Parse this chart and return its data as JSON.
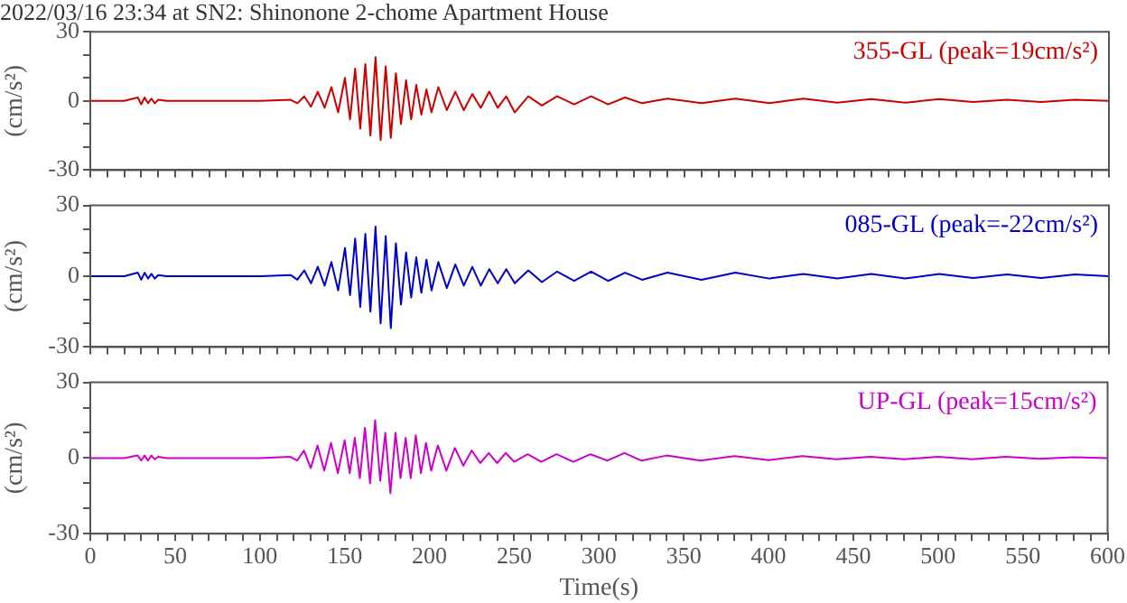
{
  "chart_data": [
    {
      "type": "line",
      "title": "2022/03/16 23:34 at SN2: Shinonone 2-chome Apartment House",
      "ylabel": "(cm/s²)",
      "tick_labels": "y",
      "grid": false,
      "legend": false,
      "marker": "none",
      "xlim": [
        0,
        600
      ],
      "ylim": [
        -30,
        30
      ],
      "xticks": [
        0,
        {
          "value": 10,
          "label": null
        },
        {
          "value": 20,
          "label": null
        },
        {
          "value": 30,
          "label": null
        },
        {
          "value": 40,
          "label": null
        },
        50,
        {
          "value": 60,
          "label": null
        },
        {
          "value": 70,
          "label": null
        },
        {
          "value": 80,
          "label": null
        },
        {
          "value": 90,
          "label": null
        },
        100,
        {
          "value": 110,
          "label": null
        },
        {
          "value": 120,
          "label": null
        },
        {
          "value": 130,
          "label": null
        },
        {
          "value": 140,
          "label": null
        },
        150,
        {
          "value": 160,
          "label": null
        },
        {
          "value": 170,
          "label": null
        },
        {
          "value": 180,
          "label": null
        },
        {
          "value": 190,
          "label": null
        },
        200,
        {
          "value": 210,
          "label": null
        },
        {
          "value": 220,
          "label": null
        },
        {
          "value": 230,
          "label": null
        },
        {
          "value": 240,
          "label": null
        },
        250,
        {
          "value": 260,
          "label": null
        },
        {
          "value": 270,
          "label": null
        },
        {
          "value": 280,
          "label": null
        },
        {
          "value": 290,
          "label": null
        },
        300,
        {
          "value": 310,
          "label": null
        },
        {
          "value": 320,
          "label": null
        },
        {
          "value": 330,
          "label": null
        },
        {
          "value": 340,
          "label": null
        },
        350,
        {
          "value": 360,
          "label": null
        },
        {
          "value": 370,
          "label": null
        },
        {
          "value": 380,
          "label": null
        },
        {
          "value": 390,
          "label": null
        },
        400,
        {
          "value": 410,
          "label": null
        },
        {
          "value": 420,
          "label": null
        },
        {
          "value": 430,
          "label": null
        },
        {
          "value": 440,
          "label": null
        },
        450,
        {
          "value": 460,
          "label": null
        },
        {
          "value": 470,
          "label": null
        },
        {
          "value": 480,
          "label": null
        },
        {
          "value": 490,
          "label": null
        },
        500,
        {
          "value": 510,
          "label": null
        },
        {
          "value": 520,
          "label": null
        },
        {
          "value": 530,
          "label": null
        },
        {
          "value": 540,
          "label": null
        },
        550,
        {
          "value": 560,
          "label": null
        },
        {
          "value": 570,
          "label": null
        },
        {
          "value": 580,
          "label": null
        },
        {
          "value": 590,
          "label": null
        },
        600
      ],
      "yticks": [
        -30,
        {
          "value": -20,
          "label": null
        },
        {
          "value": -10,
          "label": null
        },
        0,
        {
          "value": 10,
          "label": null
        },
        {
          "value": 20,
          "label": null
        },
        30
      ],
      "x": [
        0,
        20,
        28,
        30,
        32,
        34,
        36,
        38,
        40,
        45,
        60,
        100,
        118,
        122,
        126,
        130,
        134,
        138,
        142,
        146,
        150,
        153,
        156,
        159,
        162,
        165,
        168,
        171,
        174,
        177,
        180,
        183,
        186,
        189,
        192,
        195,
        198,
        201,
        205,
        210,
        215,
        220,
        225,
        230,
        235,
        240,
        245,
        250,
        258,
        266,
        275,
        285,
        295,
        305,
        315,
        325,
        340,
        360,
        380,
        400,
        420,
        440,
        460,
        480,
        500,
        520,
        540,
        560,
        580,
        600
      ],
      "series": [
        {
          "name": "355-GL (peak=19cm/s²)",
          "color": "#cc0000",
          "values": [
            0,
            0,
            1.5,
            -1.5,
            1.5,
            -1,
            1,
            -1,
            0.5,
            0,
            0,
            0,
            0.5,
            -1,
            2,
            -2.5,
            4,
            -3,
            6,
            -5,
            10,
            -8,
            14,
            -12,
            16,
            -15,
            19,
            -17,
            15,
            -16,
            12,
            -10,
            9,
            -8,
            7,
            -6,
            5,
            -5,
            6,
            -4,
            4,
            -4,
            3,
            -3,
            4,
            -3,
            2,
            -5,
            2,
            -2,
            2,
            -1.5,
            2,
            -1.5,
            1.5,
            -1,
            1,
            -1,
            1,
            -1,
            1,
            -0.8,
            0.8,
            -0.8,
            0.8,
            -0.5,
            0.5,
            -0.5,
            0.5,
            0
          ]
        }
      ]
    },
    {
      "type": "line",
      "ylabel": "(cm/s²)",
      "tick_labels": "y",
      "grid": false,
      "legend": false,
      "marker": "none",
      "xlim": [
        0,
        600
      ],
      "ylim": [
        -30,
        30
      ],
      "xticks": [
        0,
        {
          "value": 10,
          "label": null
        },
        {
          "value": 20,
          "label": null
        },
        {
          "value": 30,
          "label": null
        },
        {
          "value": 40,
          "label": null
        },
        50,
        {
          "value": 60,
          "label": null
        },
        {
          "value": 70,
          "label": null
        },
        {
          "value": 80,
          "label": null
        },
        {
          "value": 90,
          "label": null
        },
        100,
        {
          "value": 110,
          "label": null
        },
        {
          "value": 120,
          "label": null
        },
        {
          "value": 130,
          "label": null
        },
        {
          "value": 140,
          "label": null
        },
        150,
        {
          "value": 160,
          "label": null
        },
        {
          "value": 170,
          "label": null
        },
        {
          "value": 180,
          "label": null
        },
        {
          "value": 190,
          "label": null
        },
        200,
        {
          "value": 210,
          "label": null
        },
        {
          "value": 220,
          "label": null
        },
        {
          "value": 230,
          "label": null
        },
        {
          "value": 240,
          "label": null
        },
        250,
        {
          "value": 260,
          "label": null
        },
        {
          "value": 270,
          "label": null
        },
        {
          "value": 280,
          "label": null
        },
        {
          "value": 290,
          "label": null
        },
        300,
        {
          "value": 310,
          "label": null
        },
        {
          "value": 320,
          "label": null
        },
        {
          "value": 330,
          "label": null
        },
        {
          "value": 340,
          "label": null
        },
        350,
        {
          "value": 360,
          "label": null
        },
        {
          "value": 370,
          "label": null
        },
        {
          "value": 380,
          "label": null
        },
        {
          "value": 390,
          "label": null
        },
        400,
        {
          "value": 410,
          "label": null
        },
        {
          "value": 420,
          "label": null
        },
        {
          "value": 430,
          "label": null
        },
        {
          "value": 440,
          "label": null
        },
        450,
        {
          "value": 460,
          "label": null
        },
        {
          "value": 470,
          "label": null
        },
        {
          "value": 480,
          "label": null
        },
        {
          "value": 490,
          "label": null
        },
        500,
        {
          "value": 510,
          "label": null
        },
        {
          "value": 520,
          "label": null
        },
        {
          "value": 530,
          "label": null
        },
        {
          "value": 540,
          "label": null
        },
        550,
        {
          "value": 560,
          "label": null
        },
        {
          "value": 570,
          "label": null
        },
        {
          "value": 580,
          "label": null
        },
        {
          "value": 590,
          "label": null
        },
        600
      ],
      "yticks": [
        -30,
        {
          "value": -20,
          "label": null
        },
        {
          "value": -10,
          "label": null
        },
        0,
        {
          "value": 10,
          "label": null
        },
        {
          "value": 20,
          "label": null
        },
        30
      ],
      "x": [
        0,
        20,
        28,
        30,
        32,
        34,
        36,
        38,
        40,
        45,
        60,
        100,
        118,
        122,
        126,
        130,
        134,
        138,
        142,
        146,
        150,
        153,
        156,
        159,
        162,
        165,
        168,
        171,
        174,
        177,
        180,
        183,
        186,
        189,
        192,
        195,
        198,
        201,
        205,
        210,
        215,
        220,
        225,
        230,
        235,
        240,
        245,
        250,
        258,
        266,
        275,
        285,
        295,
        305,
        315,
        325,
        340,
        360,
        380,
        400,
        420,
        440,
        460,
        480,
        500,
        520,
        540,
        560,
        580,
        600
      ],
      "series": [
        {
          "name": "085-GL (peak=-22cm/s²)",
          "color": "#0000cc",
          "values": [
            0,
            0,
            1.5,
            -1.5,
            1.5,
            -1,
            1,
            -1,
            0.5,
            0,
            0,
            0,
            0.5,
            -1.5,
            2.5,
            -3,
            4,
            -4,
            6,
            -6,
            12,
            -8,
            16,
            -13,
            18,
            -15,
            21,
            -20,
            17,
            -22,
            14,
            -12,
            10,
            -9,
            8,
            -7,
            7,
            -6,
            6,
            -5,
            5,
            -4,
            4,
            -4,
            3,
            -3,
            3,
            -3,
            2.5,
            -2.5,
            2,
            -2,
            2,
            -2,
            1.5,
            -1.5,
            1.5,
            -1.5,
            1.5,
            -1,
            1,
            -1,
            1,
            -1,
            1,
            -0.8,
            0.8,
            -0.8,
            0.8,
            0
          ]
        }
      ]
    },
    {
      "type": "line",
      "ylabel": "(cm/s²)",
      "xlabel": "Time(s)",
      "grid": false,
      "legend": false,
      "marker": "none",
      "xlim": [
        0,
        600
      ],
      "ylim": [
        -30,
        30
      ],
      "xticks": [
        0,
        {
          "value": 10,
          "label": null
        },
        {
          "value": 20,
          "label": null
        },
        {
          "value": 30,
          "label": null
        },
        {
          "value": 40,
          "label": null
        },
        50,
        {
          "value": 60,
          "label": null
        },
        {
          "value": 70,
          "label": null
        },
        {
          "value": 80,
          "label": null
        },
        {
          "value": 90,
          "label": null
        },
        100,
        {
          "value": 110,
          "label": null
        },
        {
          "value": 120,
          "label": null
        },
        {
          "value": 130,
          "label": null
        },
        {
          "value": 140,
          "label": null
        },
        150,
        {
          "value": 160,
          "label": null
        },
        {
          "value": 170,
          "label": null
        },
        {
          "value": 180,
          "label": null
        },
        {
          "value": 190,
          "label": null
        },
        200,
        {
          "value": 210,
          "label": null
        },
        {
          "value": 220,
          "label": null
        },
        {
          "value": 230,
          "label": null
        },
        {
          "value": 240,
          "label": null
        },
        250,
        {
          "value": 260,
          "label": null
        },
        {
          "value": 270,
          "label": null
        },
        {
          "value": 280,
          "label": null
        },
        {
          "value": 290,
          "label": null
        },
        300,
        {
          "value": 310,
          "label": null
        },
        {
          "value": 320,
          "label": null
        },
        {
          "value": 330,
          "label": null
        },
        {
          "value": 340,
          "label": null
        },
        350,
        {
          "value": 360,
          "label": null
        },
        {
          "value": 370,
          "label": null
        },
        {
          "value": 380,
          "label": null
        },
        {
          "value": 390,
          "label": null
        },
        400,
        {
          "value": 410,
          "label": null
        },
        {
          "value": 420,
          "label": null
        },
        {
          "value": 430,
          "label": null
        },
        {
          "value": 440,
          "label": null
        },
        450,
        {
          "value": 460,
          "label": null
        },
        {
          "value": 470,
          "label": null
        },
        {
          "value": 480,
          "label": null
        },
        {
          "value": 490,
          "label": null
        },
        500,
        {
          "value": 510,
          "label": null
        },
        {
          "value": 520,
          "label": null
        },
        {
          "value": 530,
          "label": null
        },
        {
          "value": 540,
          "label": null
        },
        550,
        {
          "value": 560,
          "label": null
        },
        {
          "value": 570,
          "label": null
        },
        {
          "value": 580,
          "label": null
        },
        {
          "value": 590,
          "label": null
        },
        600
      ],
      "yticks": [
        -30,
        {
          "value": -20,
          "label": null
        },
        {
          "value": -10,
          "label": null
        },
        0,
        {
          "value": 10,
          "label": null
        },
        {
          "value": 20,
          "label": null
        },
        30
      ],
      "x": [
        0,
        20,
        28,
        30,
        32,
        34,
        36,
        38,
        40,
        45,
        60,
        100,
        118,
        122,
        126,
        130,
        134,
        138,
        142,
        146,
        150,
        153,
        156,
        159,
        162,
        165,
        168,
        171,
        174,
        177,
        180,
        183,
        186,
        189,
        192,
        195,
        198,
        201,
        205,
        210,
        215,
        220,
        225,
        230,
        235,
        240,
        245,
        250,
        258,
        266,
        275,
        285,
        295,
        305,
        315,
        325,
        340,
        360,
        380,
        400,
        420,
        440,
        460,
        480,
        500,
        520,
        540,
        560,
        580,
        600
      ],
      "series": [
        {
          "name": "UP-GL (peak=15cm/s²)",
          "color": "#cc00cc",
          "values": [
            0,
            0,
            1,
            -1,
            1,
            -1,
            1,
            -0.5,
            0.5,
            0,
            0,
            0,
            0.5,
            -1,
            3,
            -4,
            5,
            -5,
            6,
            -6,
            7,
            -6,
            8,
            -8,
            12,
            -10,
            15,
            -9,
            10,
            -14,
            10,
            -8,
            8,
            -8,
            9,
            -6,
            6,
            -5,
            5,
            -5,
            4,
            -3,
            3,
            -2,
            2,
            -2,
            2,
            -1.5,
            1.5,
            -1.5,
            1.5,
            -1.5,
            1.5,
            -1,
            2,
            -1,
            1,
            -1,
            0.8,
            -0.8,
            0.8,
            -0.5,
            0.5,
            -0.5,
            0.5,
            -0.5,
            0.5,
            -0.3,
            0.3,
            0
          ]
        }
      ]
    }
  ]
}
